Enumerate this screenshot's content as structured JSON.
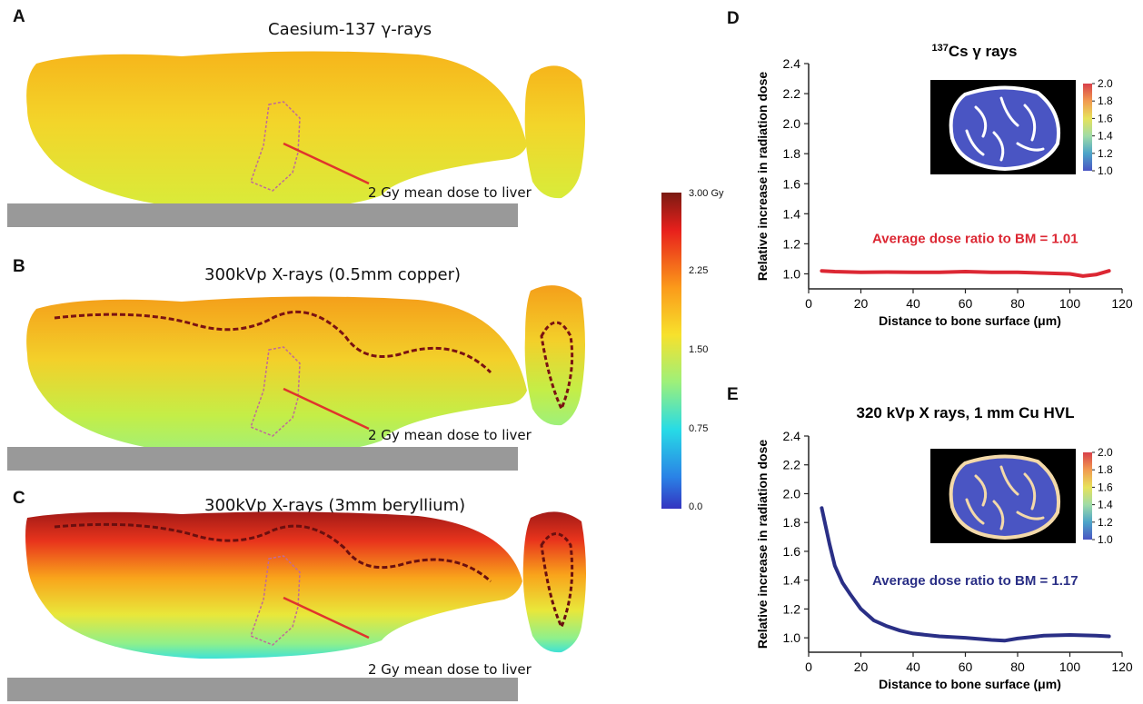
{
  "figure": {
    "panels": [
      {
        "letter": "A",
        "title": "Caesium-137 γ-rays",
        "annotation": "2 Gy mean dose to liver"
      },
      {
        "letter": "B",
        "title": "300kVp X-rays (0.5mm copper)",
        "annotation": "2 Gy mean dose to liver"
      },
      {
        "letter": "C",
        "title": "300kVp X-rays (3mm beryllium)",
        "annotation": "2 Gy mean dose to liver"
      }
    ],
    "dose_colorbar": {
      "labels": [
        "3.00 Gy",
        "2.25",
        "1.50",
        "0.75",
        "0.0"
      ],
      "range": [
        0,
        3.0
      ],
      "unit": "Gy"
    },
    "colors": {
      "annotation_arrow": "#e0342c",
      "table_bar": "#999999",
      "cs_line": "#dc2733",
      "xray_line": "#2a2f86",
      "bone_marrow": "#4a55c3",
      "bone_outline": "#ffffff",
      "bone_outline_xray": "#f3d9a9"
    }
  },
  "chart_data": [
    {
      "panel": "D",
      "type": "line",
      "title": "¹³⁷Cs γ rays",
      "title_sup": "137",
      "title_main": "Cs γ rays",
      "xlabel": "Distance to bone surface (μm)",
      "ylabel": "Relative increase in radiation dose",
      "xlim": [
        0,
        120
      ],
      "ylim": [
        0.9,
        2.4
      ],
      "xticks": [
        "0",
        "20",
        "40",
        "60",
        "80",
        "100",
        "120"
      ],
      "yticks": [
        "1.0",
        "1.2",
        "1.4",
        "1.6",
        "1.8",
        "2.0",
        "2.2",
        "2.4"
      ],
      "annotation": "Average dose ratio to BM = 1.01",
      "inset_colorbar_labels": [
        "2.0",
        "1.8",
        "1.6",
        "1.4",
        "1.2",
        "1.0"
      ],
      "series": [
        {
          "x": [
            5,
            10,
            20,
            30,
            40,
            50,
            60,
            70,
            80,
            90,
            100,
            105,
            110,
            115
          ],
          "y": [
            1.02,
            1.015,
            1.01,
            1.012,
            1.01,
            1.01,
            1.015,
            1.01,
            1.01,
            1.005,
            1.0,
            0.985,
            0.995,
            1.02
          ]
        }
      ]
    },
    {
      "panel": "E",
      "type": "line",
      "title": "320 kVp X rays, 1 mm Cu HVL",
      "xlabel": "Distance to bone surface (μm)",
      "ylabel": "Relative increase in radiation dose",
      "xlim": [
        0,
        120
      ],
      "ylim": [
        0.9,
        2.4
      ],
      "xticks": [
        "0",
        "20",
        "40",
        "60",
        "80",
        "100",
        "120"
      ],
      "yticks": [
        "1.0",
        "1.2",
        "1.4",
        "1.6",
        "1.8",
        "2.0",
        "2.2",
        "2.4"
      ],
      "annotation": "Average dose ratio to BM = 1.17",
      "inset_colorbar_labels": [
        "2.0",
        "1.8",
        "1.6",
        "1.4",
        "1.2",
        "1.0"
      ],
      "series": [
        {
          "x": [
            5,
            8,
            10,
            13,
            16,
            20,
            25,
            30,
            35,
            40,
            50,
            60,
            70,
            75,
            80,
            90,
            100,
            110,
            115
          ],
          "y": [
            1.9,
            1.65,
            1.5,
            1.38,
            1.3,
            1.2,
            1.12,
            1.08,
            1.05,
            1.03,
            1.01,
            1.0,
            0.985,
            0.98,
            0.995,
            1.015,
            1.02,
            1.015,
            1.01
          ]
        }
      ]
    }
  ]
}
